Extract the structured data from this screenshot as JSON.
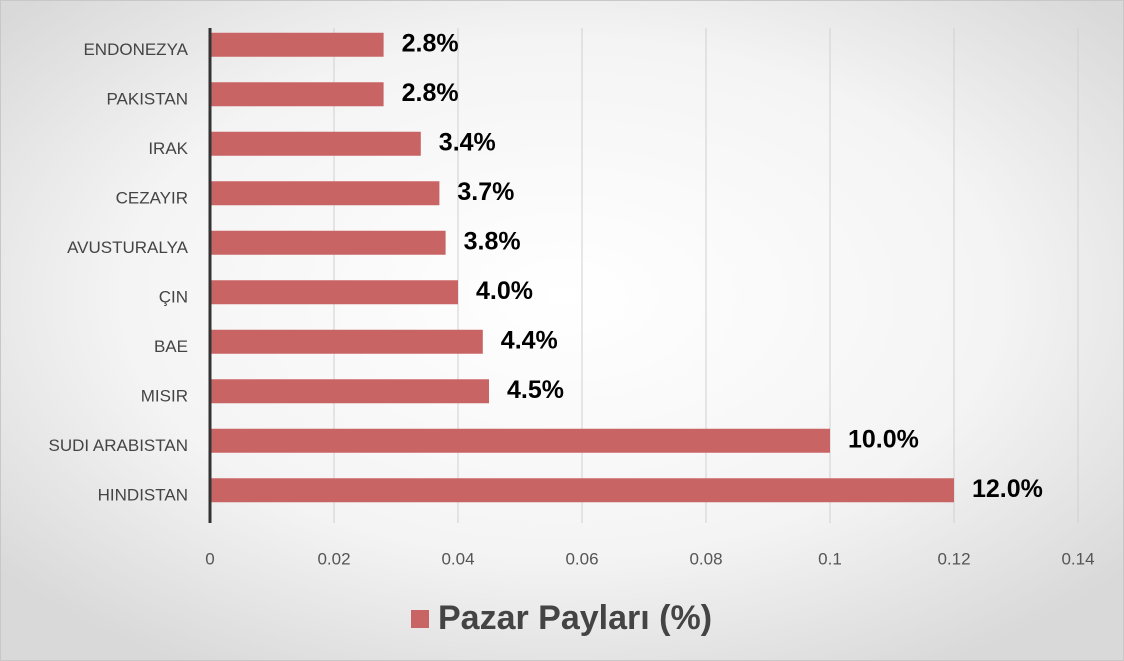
{
  "chart_data": {
    "type": "barh",
    "categories": [
      "ENDONEZYA",
      "PAKISTAN",
      "IRAK",
      "CEZAYIR",
      "AVUSTURALYA",
      "ÇIN",
      "BAE",
      "MISIR",
      "SUDI ARABISTAN",
      "HINDISTAN"
    ],
    "series": [
      {
        "name": "Pazar Payları (%)",
        "color": "#c96464",
        "values": [
          0.028,
          0.028,
          0.034,
          0.037,
          0.038,
          0.04,
          0.044,
          0.045,
          0.1,
          0.12
        ],
        "value_labels": [
          "2.8%",
          "2.8%",
          "3.4%",
          "3.7%",
          "3.8%",
          "4.0%",
          "4.4%",
          "4.5%",
          "10.0%",
          "12.0%"
        ]
      }
    ],
    "xlim": [
      0,
      0.14
    ],
    "xticks": [
      0,
      0.02,
      0.04,
      0.06,
      0.08,
      0.1,
      0.12,
      0.14
    ],
    "grid": true,
    "legend": "bottom"
  }
}
